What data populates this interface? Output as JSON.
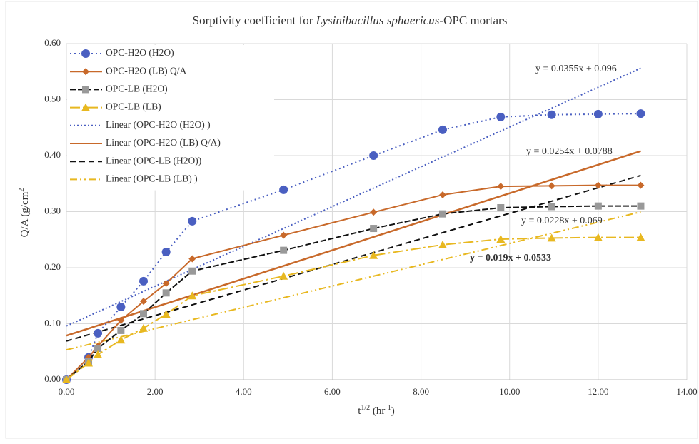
{
  "chart_data": {
    "type": "line",
    "title": [
      "Sorptivity coefficient for ",
      "Lysinibacillus sphaericus",
      "-OPC mortars"
    ],
    "x_label": [
      "t",
      "1/2",
      " (hr",
      "-1",
      ")"
    ],
    "y_label": [
      "Q/A (g/cm",
      "2"
    ],
    "x": [
      0,
      0.5,
      0.71,
      1.23,
      1.74,
      2.25,
      2.84,
      4.9,
      6.93,
      8.49,
      9.8,
      10.95,
      12,
      12.96
    ],
    "series": [
      {
        "name": "OPC-H2O (H2O)",
        "color": "#4a5fc1",
        "marker": "circle",
        "dash": "2 4",
        "values": [
          0,
          0.04,
          0.083,
          0.13,
          0.176,
          0.228,
          0.283,
          0.339,
          0.4,
          0.446,
          0.469,
          0.473,
          0.474,
          0.475
        ]
      },
      {
        "name": "OPC-H2O (LB) Q/A",
        "color": "#c8692a",
        "marker": "diamond",
        "dash": "",
        "values": [
          0,
          0.04,
          0.06,
          0.106,
          0.14,
          0.172,
          0.216,
          0.258,
          0.299,
          0.33,
          0.345,
          0.346,
          0.347,
          0.347
        ]
      },
      {
        "name": "OPC-LB (H2O)",
        "color": "#111111",
        "marker": "square",
        "dash": "8 3",
        "values": [
          0,
          0.033,
          0.056,
          0.088,
          0.118,
          0.155,
          0.194,
          0.231,
          0.27,
          0.296,
          0.307,
          0.309,
          0.31,
          0.31
        ]
      },
      {
        "name": "OPC-LB (LB)",
        "color": "#e8b820",
        "marker": "triangle",
        "dash": "14 4 3 4",
        "values": [
          0,
          0.03,
          0.045,
          0.071,
          0.092,
          0.117,
          0.15,
          0.185,
          0.222,
          0.241,
          0.251,
          0.253,
          0.254,
          0.254
        ]
      }
    ],
    "trendlines": [
      {
        "name": "Linear (OPC-H2O (H2O) )",
        "color": "#4a5fc1",
        "dash": "2 3",
        "slope": 0.0355,
        "intercept": 0.096,
        "label": "y = 0.0355x + 0.096",
        "label_color": "#4a5fc1"
      },
      {
        "name": "Linear (OPC-H2O (LB) Q/A)",
        "color": "#c8692a",
        "dash": "",
        "slope": 0.0254,
        "intercept": 0.0788,
        "label": "y = 0.0254x + 0.0788",
        "label_color": "#d9772e"
      },
      {
        "name": "Linear (OPC-LB (H2O))",
        "color": "#111111",
        "dash": "8 5",
        "slope": 0.0228,
        "intercept": 0.069,
        "label": "y = 0.0228x + 0.069",
        "label_color": "#111111"
      },
      {
        "name": "Linear (OPC-LB (LB) )",
        "color": "#e8b820",
        "dash": "10 4 2 4 2 4",
        "slope": 0.019,
        "intercept": 0.0533,
        "label": "y = 0.019x + 0.0533",
        "label_color": "#9c7f14"
      }
    ],
    "xlim": [
      0,
      14
    ],
    "ylim": [
      0,
      0.6
    ],
    "xticks": [
      {
        "value": 0,
        "label": "0.00"
      },
      {
        "value": 2,
        "label": "2.00"
      },
      {
        "value": 4,
        "label": "4.00"
      },
      {
        "value": 6,
        "label": "6.00"
      },
      {
        "value": 8,
        "label": "8.00"
      },
      {
        "value": 10,
        "label": "10.00"
      },
      {
        "value": 12,
        "label": "12.00"
      },
      {
        "value": 14,
        "label": "14.00"
      }
    ],
    "yticks": [
      {
        "value": 0,
        "label": "0.00"
      },
      {
        "value": 0.1,
        "label": "0.10"
      },
      {
        "value": 0.2,
        "label": "0.20"
      },
      {
        "value": 0.3,
        "label": "0.30"
      },
      {
        "value": 0.4,
        "label": "0.40"
      },
      {
        "value": 0.5,
        "label": "0.50"
      },
      {
        "value": 0.6,
        "label": "0.60"
      }
    ],
    "grid": true,
    "legend": "upper-left"
  }
}
